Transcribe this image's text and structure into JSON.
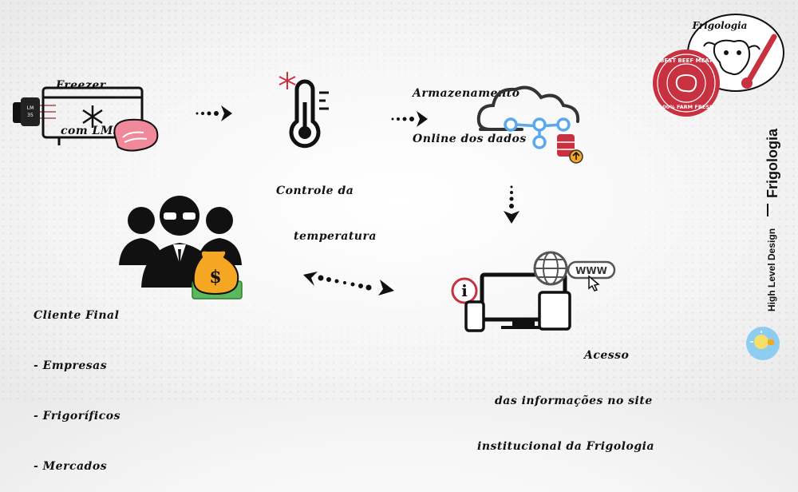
{
  "nodes": {
    "freezer": {
      "line1": "Freezer",
      "line2": "com LM35",
      "sensor_label": "LM\n35"
    },
    "temperature": {
      "line1": "Controle da",
      "line2": "temperatura"
    },
    "storage": {
      "line1": "Armazenamento",
      "line2": "Online dos dados"
    },
    "access": {
      "line1": "Acesso",
      "line2": "das informações no site",
      "line3": "institucional da Frigologia",
      "www_label": "WWW",
      "info_label": "i"
    },
    "client": {
      "title": "Cliente Final",
      "items": [
        "- Empresas",
        "- Frigoríficos",
        "- Mercados"
      ]
    }
  },
  "brand": {
    "logo_title": "Frigologia",
    "badge_top": "BEST BEEF MEAT",
    "badge_bottom": "100% FARM FRESH",
    "vertical_title": "Frigologia",
    "vertical_subtitle": "High Level Design"
  },
  "icons": [
    "freezer-icon",
    "meat-icon",
    "thermometer-icon",
    "snowflake-icon",
    "cloud-icon",
    "database-icon",
    "devices-icon",
    "globe-icon",
    "people-icon",
    "money-bag-icon",
    "lightbulb-icon"
  ],
  "colors": {
    "ink": "#111111",
    "accent_blue": "#5aa9f0",
    "badge_red": "#c8313f",
    "meat_pink": "#f08a9a",
    "coin_orange": "#f5a623",
    "money_green": "#5cb85c"
  }
}
